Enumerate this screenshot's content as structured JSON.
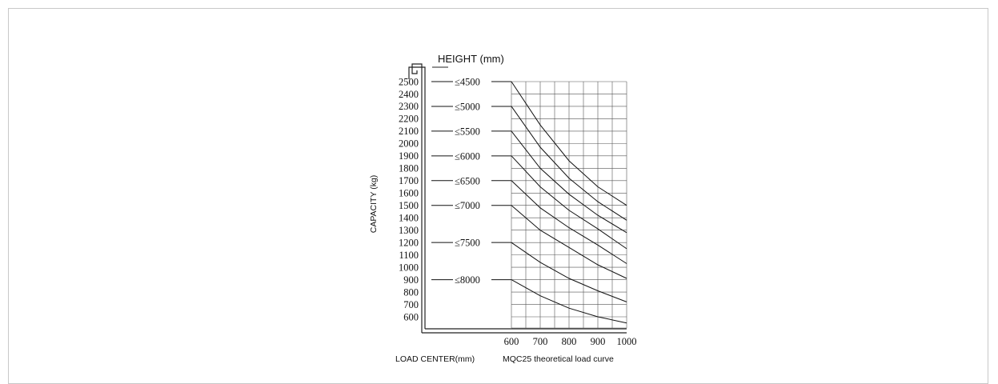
{
  "chart_data": {
    "type": "line",
    "title": "MQC25 theoretical load curve",
    "xlabel": "LOAD CENTER(mm)",
    "ylabel": "CAPACITY (kg)",
    "legend_title": "HEIGHT (mm)",
    "x": [
      600,
      700,
      800,
      900,
      1000
    ],
    "x_ticks": [
      "600",
      "700",
      "800",
      "900",
      "1000"
    ],
    "y_ticks": [
      "600",
      "700",
      "800",
      "900",
      "1000",
      "1100",
      "1200",
      "1300",
      "1400",
      "1500",
      "1600",
      "1700",
      "1800",
      "1900",
      "2000",
      "2100",
      "2200",
      "2300",
      "2400",
      "2500"
    ],
    "xlim": [
      600,
      1000
    ],
    "ylim": [
      500,
      2500
    ],
    "grid": true,
    "series": [
      {
        "name": "≤4500",
        "values": [
          2500,
          2150,
          1860,
          1650,
          1500
        ]
      },
      {
        "name": "≤5000",
        "values": [
          2300,
          1970,
          1720,
          1530,
          1380
        ]
      },
      {
        "name": "≤5500",
        "values": [
          2100,
          1800,
          1590,
          1420,
          1280
        ]
      },
      {
        "name": "≤6000",
        "values": [
          1900,
          1650,
          1460,
          1310,
          1150
        ]
      },
      {
        "name": "≤6500",
        "values": [
          1700,
          1480,
          1320,
          1180,
          1030
        ]
      },
      {
        "name": "≤7000",
        "values": [
          1500,
          1300,
          1160,
          1020,
          910
        ]
      },
      {
        "name": "≤7500",
        "values": [
          1200,
          1040,
          910,
          810,
          720
        ]
      },
      {
        "name": "≤8000",
        "values": [
          900,
          770,
          670,
          600,
          550
        ]
      }
    ]
  }
}
